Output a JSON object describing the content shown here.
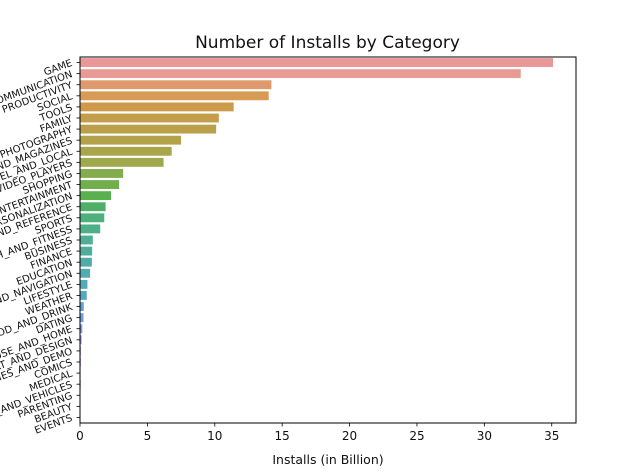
{
  "chart_data": {
    "type": "bar",
    "orientation": "horizontal",
    "title": "Number of Installs by Category",
    "xlabel": "Installs (in Billion)",
    "ylabel": "",
    "xlim": [
      0,
      36.8
    ],
    "xticks": [
      0,
      5,
      10,
      15,
      20,
      25,
      30,
      35
    ],
    "grid": false,
    "categories": [
      "GAME",
      "COMMUNICATION",
      "PRODUCTIVITY",
      "SOCIAL",
      "TOOLS",
      "FAMILY",
      "PHOTOGRAPHY",
      "NEWS_AND_MAGAZINES",
      "TRAVEL_AND_LOCAL",
      "VIDEO_PLAYERS",
      "SHOPPING",
      "ENTERTAINMENT",
      "PERSONALIZATION",
      "BOOKS_AND_REFERENCE",
      "SPORTS",
      "HEALTH_AND_FITNESS",
      "BUSINESS",
      "FINANCE",
      "EDUCATION",
      "MAPS_AND_NAVIGATION",
      "LIFESTYLE",
      "WEATHER",
      "FOOD_AND_DRINK",
      "DATING",
      "HOUSE_AND_HOME",
      "ART_AND_DESIGN",
      "LIBRARIES_AND_DEMO",
      "COMICS",
      "MEDICAL",
      "AUTO_AND_VEHICLES",
      "PARENTING",
      "BEAUTY",
      "EVENTS"
    ],
    "values": [
      35.1,
      32.7,
      14.2,
      14.0,
      11.4,
      10.3,
      10.1,
      7.5,
      6.8,
      6.2,
      3.2,
      2.9,
      2.3,
      1.9,
      1.8,
      1.5,
      0.95,
      0.9,
      0.88,
      0.75,
      0.55,
      0.5,
      0.28,
      0.26,
      0.17,
      0.12,
      0.06,
      0.06,
      0.04,
      0.05,
      0.03,
      0.03,
      0.02
    ],
    "colors": [
      "#ea9897",
      "#e89a95",
      "#de9a6c",
      "#d89a55",
      "#cd9a4c",
      "#c49d4a",
      "#bb9f49",
      "#b3a249",
      "#a9a54a",
      "#9fa84b",
      "#83ac4c",
      "#71ae4c",
      "#58b04e",
      "#4eb068",
      "#4eb07a",
      "#4eaf88",
      "#4fae94",
      "#50ad9d",
      "#51aca7",
      "#52abb0",
      "#54a9ba",
      "#57a7c5",
      "#5da4d3",
      "#6a9fe0",
      "#7e99ec",
      "#9992ec",
      "#ae8de7",
      "#bf88e6",
      "#d083e1",
      "#dc84d4",
      "#e288c5",
      "#e48bb7",
      "#e88fa8"
    ]
  }
}
